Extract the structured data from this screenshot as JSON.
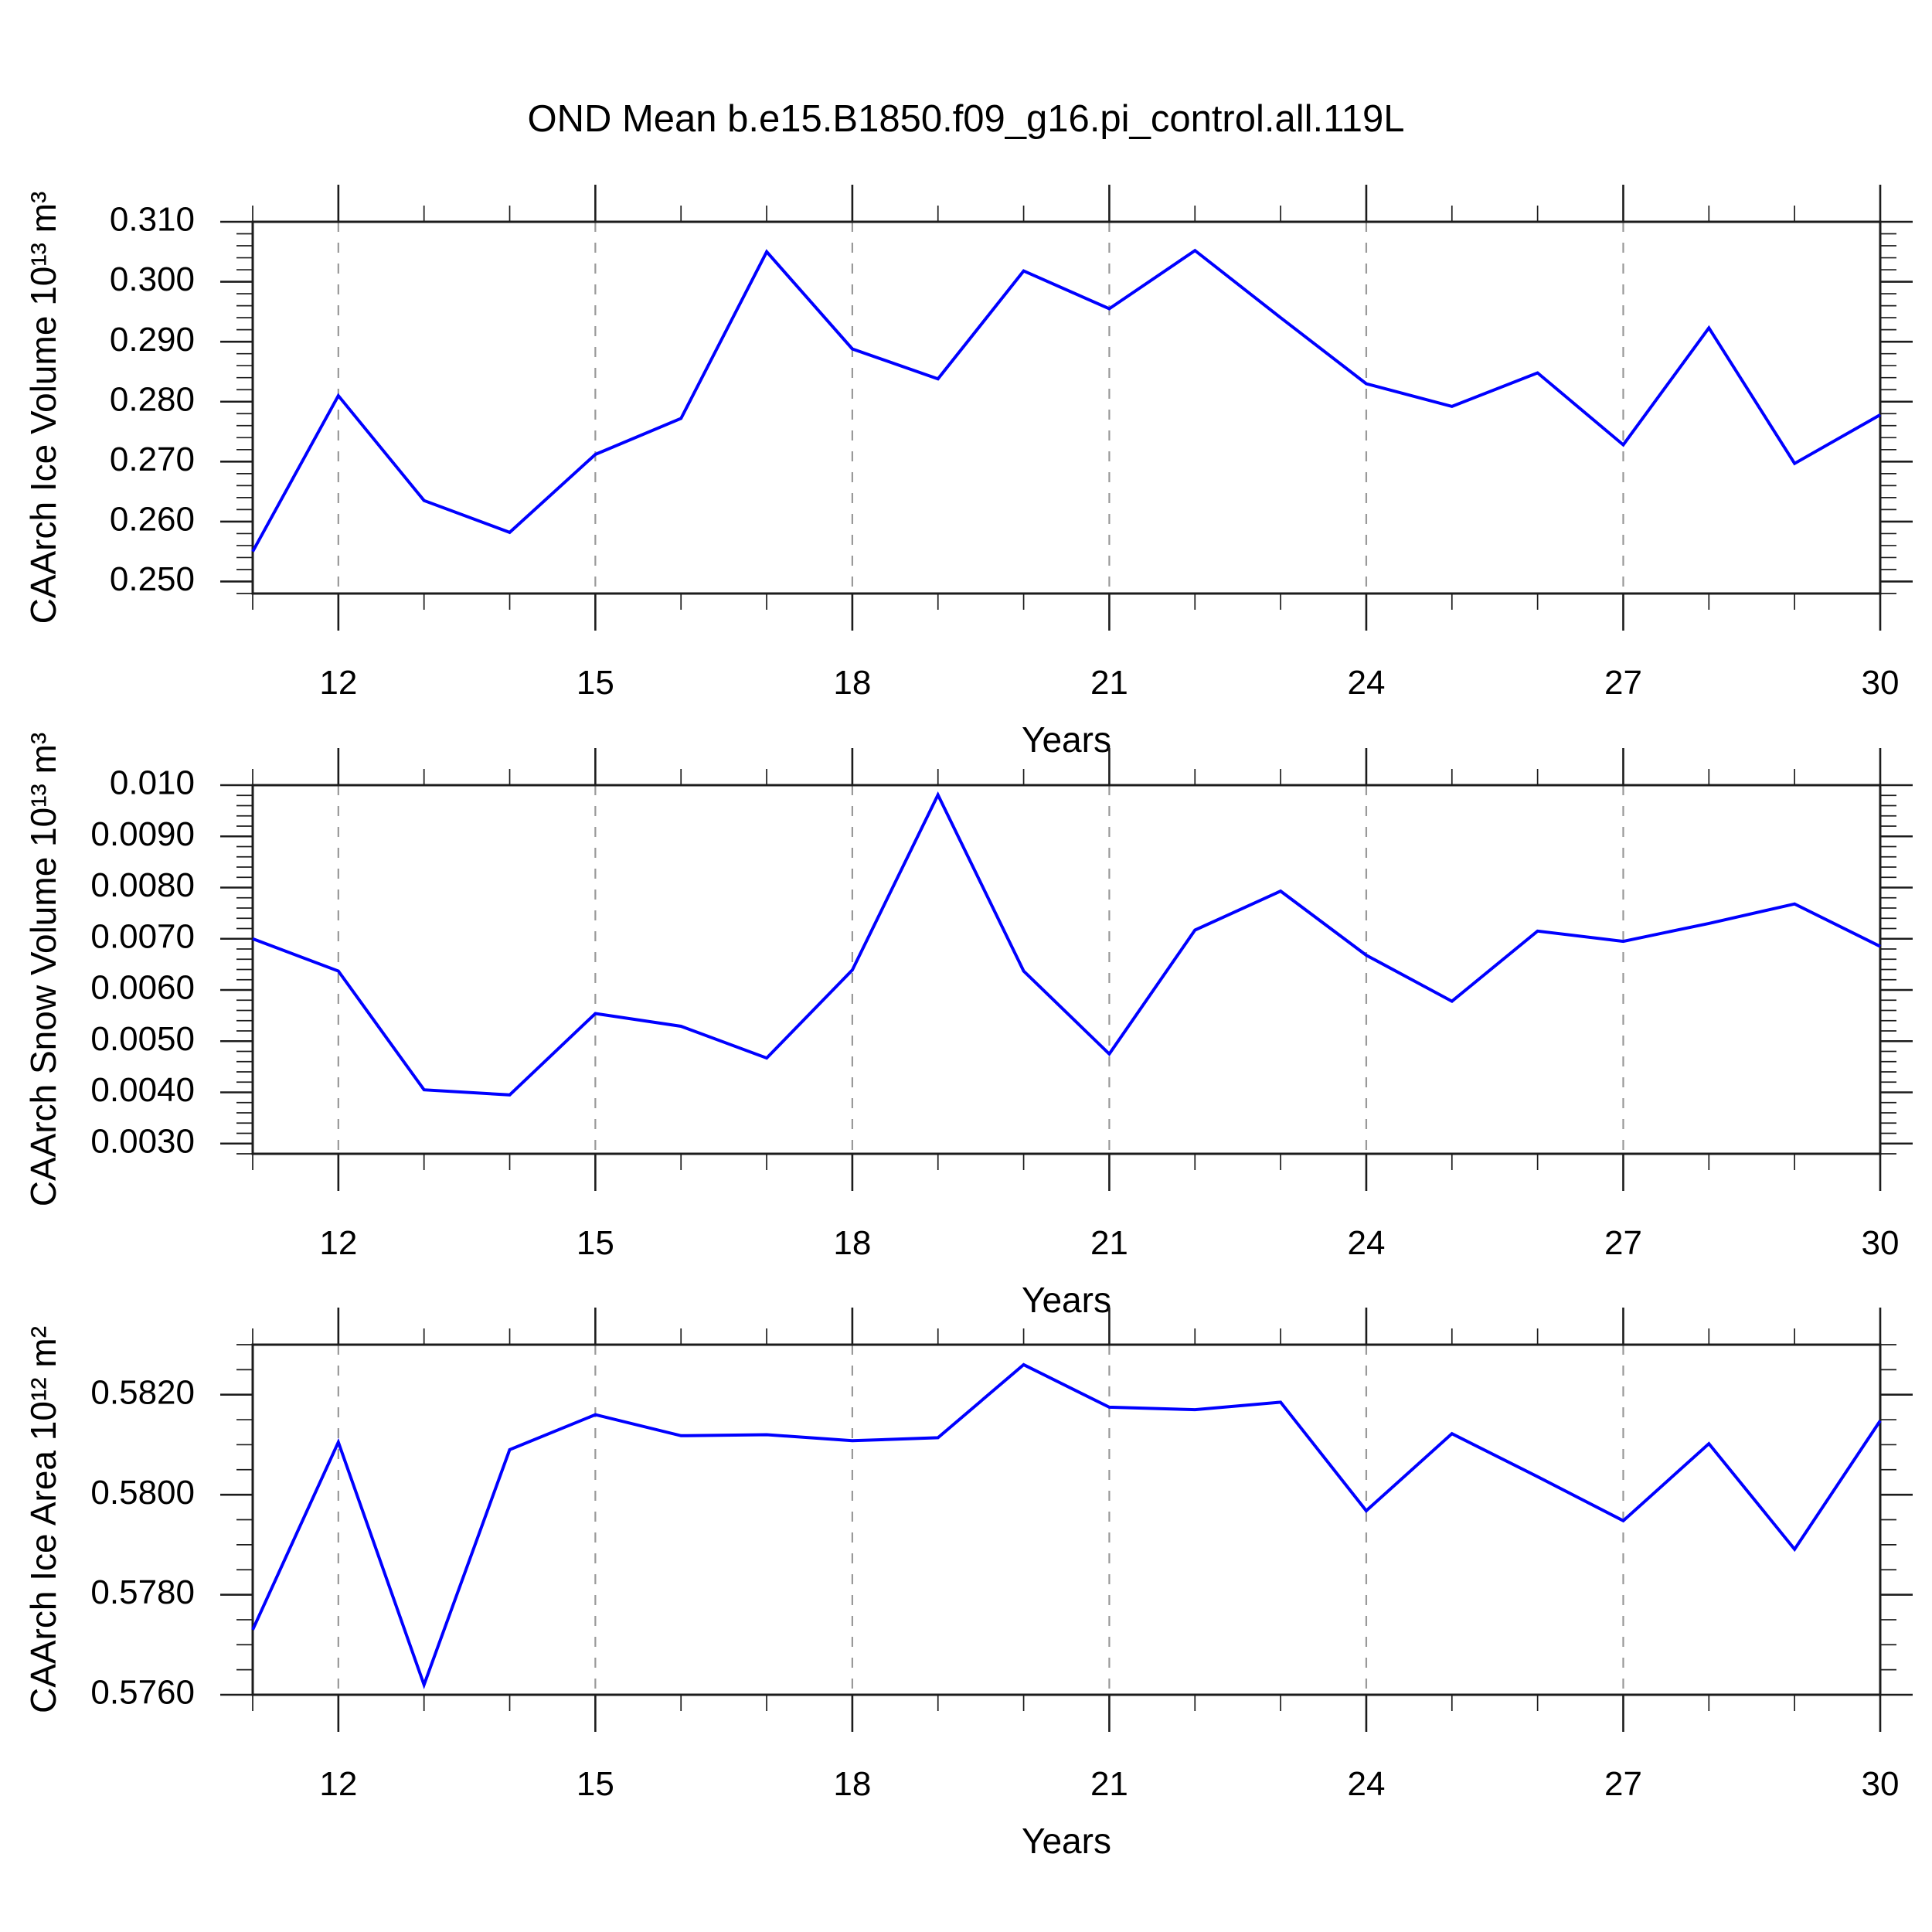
{
  "title": "OND Mean b.e15.B1850.f09_g16.pi_control.all.119L",
  "accent_color": "#0000ff",
  "frame_color": "#1c1c1c",
  "grid_color": "#999999",
  "chart_data": [
    {
      "type": "line",
      "name": "caarch-ice-volume",
      "ylabel": "CAArch Ice Volume 10¹³ m³",
      "xlabel": "Years",
      "line_color": "#0000ff",
      "x_start": 11,
      "x_end": 30,
      "x_major": [
        12,
        15,
        18,
        21,
        24,
        27,
        30
      ],
      "x_major_labels": [
        "12",
        "15",
        "18",
        "21",
        "24",
        "27",
        "30"
      ],
      "x_grid": [
        12,
        15,
        18,
        21,
        24,
        27
      ],
      "ylim": [
        0.248,
        0.31
      ],
      "y_major_values": [
        0.31,
        0.3,
        0.29,
        0.28,
        0.27,
        0.26,
        0.25
      ],
      "y_major_labels": [
        "0.310",
        "0.300",
        "0.290",
        "0.280",
        "0.270",
        "0.260",
        "0.250"
      ],
      "y_minor_step": 0.002,
      "x": [
        11,
        12,
        13,
        14,
        15,
        16,
        17,
        18,
        19,
        20,
        21,
        22,
        23,
        24,
        25,
        26,
        27,
        28,
        29,
        30
      ],
      "values": [
        0.255,
        0.281,
        0.2635,
        0.2582,
        0.2712,
        0.2772,
        0.305,
        0.2888,
        0.2838,
        0.3018,
        0.2955,
        0.3052,
        0.294,
        0.283,
        0.2792,
        0.2848,
        0.2728,
        0.2923,
        0.2697,
        0.2778
      ]
    },
    {
      "type": "line",
      "name": "caarch-snow-volume",
      "ylabel": "CAArch Snow Volume 10¹³ m³",
      "xlabel": "Years",
      "line_color": "#0000ff",
      "x_start": 11,
      "x_end": 30,
      "x_major": [
        12,
        15,
        18,
        21,
        24,
        27,
        30
      ],
      "x_major_labels": [
        "12",
        "15",
        "18",
        "21",
        "24",
        "27",
        "30"
      ],
      "x_grid": [
        12,
        15,
        18,
        21,
        24,
        27
      ],
      "ylim": [
        0.0028,
        0.01
      ],
      "y_major_values": [
        0.01,
        0.009,
        0.008,
        0.007,
        0.006,
        0.005,
        0.004,
        0.003
      ],
      "y_major_labels": [
        "0.010",
        "0.0090",
        "0.0080",
        "0.0070",
        "0.0060",
        "0.0050",
        "0.0040",
        "0.0030"
      ],
      "y_minor_step": 0.0002,
      "x": [
        11,
        12,
        13,
        14,
        15,
        16,
        17,
        18,
        19,
        20,
        21,
        22,
        23,
        24,
        25,
        26,
        27,
        28,
        29,
        30
      ],
      "values": [
        0.007,
        0.00637,
        0.00405,
        0.00395,
        0.00554,
        0.00529,
        0.00467,
        0.00639,
        0.00981,
        0.00637,
        0.00475,
        0.00717,
        0.00793,
        0.00668,
        0.00578,
        0.00715,
        0.00695,
        0.0073,
        0.00768,
        0.00685
      ]
    },
    {
      "type": "line",
      "name": "caarch-ice-area",
      "ylabel": "CAArch Ice Area 10¹² m²",
      "xlabel": "Years",
      "line_color": "#0000ff",
      "x_start": 11,
      "x_end": 30,
      "x_major": [
        12,
        15,
        18,
        21,
        24,
        27,
        30
      ],
      "x_major_labels": [
        "12",
        "15",
        "18",
        "21",
        "24",
        "27",
        "30"
      ],
      "x_grid": [
        12,
        15,
        18,
        21,
        24,
        27
      ],
      "ylim": [
        0.576,
        0.583
      ],
      "y_major_values": [
        0.582,
        0.58,
        0.578,
        0.576
      ],
      "y_major_labels": [
        "0.5820",
        "0.5800",
        "0.5780",
        "0.5760"
      ],
      "y_minor_step": 0.0005,
      "x": [
        11,
        12,
        13,
        14,
        15,
        16,
        17,
        18,
        19,
        20,
        21,
        22,
        23,
        24,
        25,
        26,
        27,
        28,
        29,
        30
      ],
      "values": [
        0.5773,
        0.58105,
        0.5762,
        0.5809,
        0.5816,
        0.58118,
        0.5812,
        0.58108,
        0.58114,
        0.5826,
        0.58175,
        0.5817,
        0.58185,
        0.57968,
        0.58122,
        0.58036,
        0.57948,
        0.58102,
        0.57891,
        0.58148
      ]
    }
  ]
}
